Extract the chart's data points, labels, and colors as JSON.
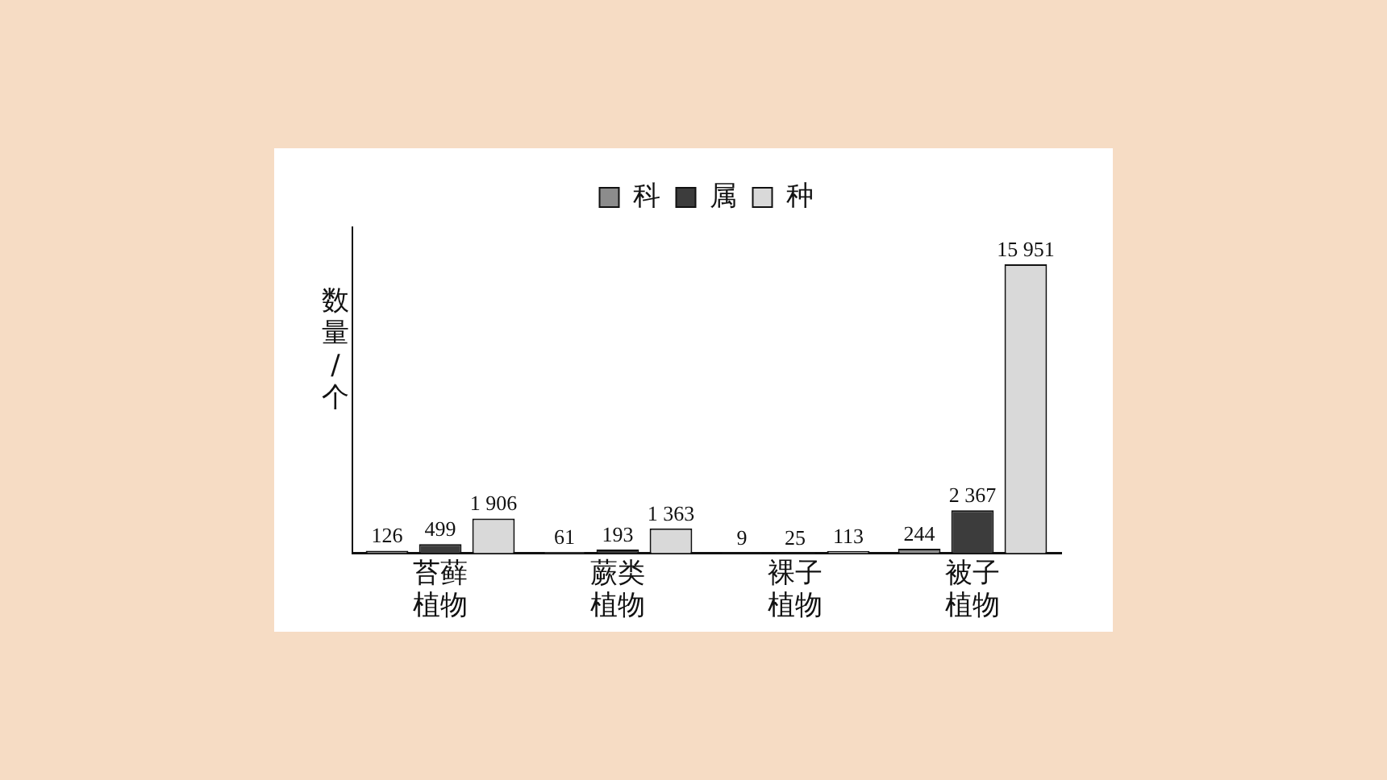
{
  "chart_data": {
    "type": "bar",
    "ylabel": "数量/个",
    "categories": [
      "苔藓植物",
      "蕨类植物",
      "裸子植物",
      "被子植物"
    ],
    "series": [
      {
        "name": "科",
        "color": "#8c8c8c",
        "values": [
          126,
          61,
          9,
          244
        ],
        "value_labels": [
          "126",
          "61",
          "9",
          "244"
        ]
      },
      {
        "name": "属",
        "color": "#3c3c3c",
        "values": [
          499,
          193,
          25,
          2367
        ],
        "value_labels": [
          "499",
          "193",
          "25",
          "2 367"
        ]
      },
      {
        "name": "种",
        "color": "#d9d9d9",
        "values": [
          1906,
          1363,
          113,
          15951
        ],
        "value_labels": [
          "1 906",
          "1 363",
          "113",
          "15 951"
        ]
      }
    ],
    "legend": "top",
    "grid": false,
    "tick_labels": "x"
  }
}
